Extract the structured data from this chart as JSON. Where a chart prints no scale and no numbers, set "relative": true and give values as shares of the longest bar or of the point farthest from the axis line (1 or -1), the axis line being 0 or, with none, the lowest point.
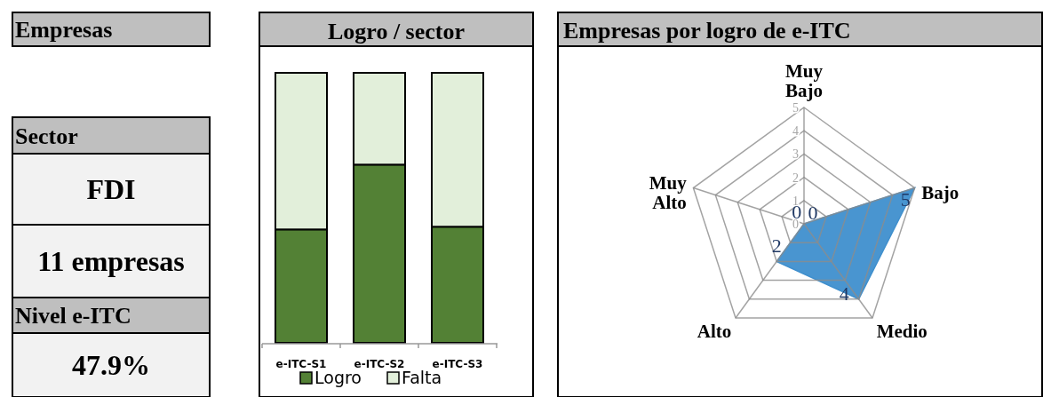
{
  "chart_data": [
    {
      "type": "other",
      "annotations": [
        "Empresas",
        "Sector",
        "FDI",
        "11 empresas",
        "Nivel e-ITC",
        "47.9%"
      ]
    },
    {
      "type": "bar",
      "title": "Logro / sector",
      "categories": [
        "e-ITC-S1",
        "e-ITC-S2",
        "e-ITC-S3"
      ],
      "stacked": true,
      "relative": true,
      "legend": "bottom",
      "series": [
        {
          "name": "Logro",
          "color": "#538135",
          "values": [
            0.42,
            0.66,
            0.43
          ]
        },
        {
          "name": "Falta",
          "color": "#e2efda",
          "values": [
            0.58,
            0.34,
            0.57
          ]
        }
      ]
    },
    {
      "type": "radar",
      "title": "Empresas por logro de e-ITC",
      "categories": [
        "Muy Bajo",
        "Bajo",
        "Medio",
        "Alto",
        "Muy Alto"
      ],
      "ylim": [
        0,
        5
      ],
      "yticks": [
        0,
        1,
        2,
        3,
        4,
        5
      ],
      "grid": true,
      "data_labels": true,
      "series": [
        {
          "color": "#3f8fcd",
          "values": [
            0,
            5,
            4,
            2,
            0
          ]
        }
      ]
    }
  ]
}
